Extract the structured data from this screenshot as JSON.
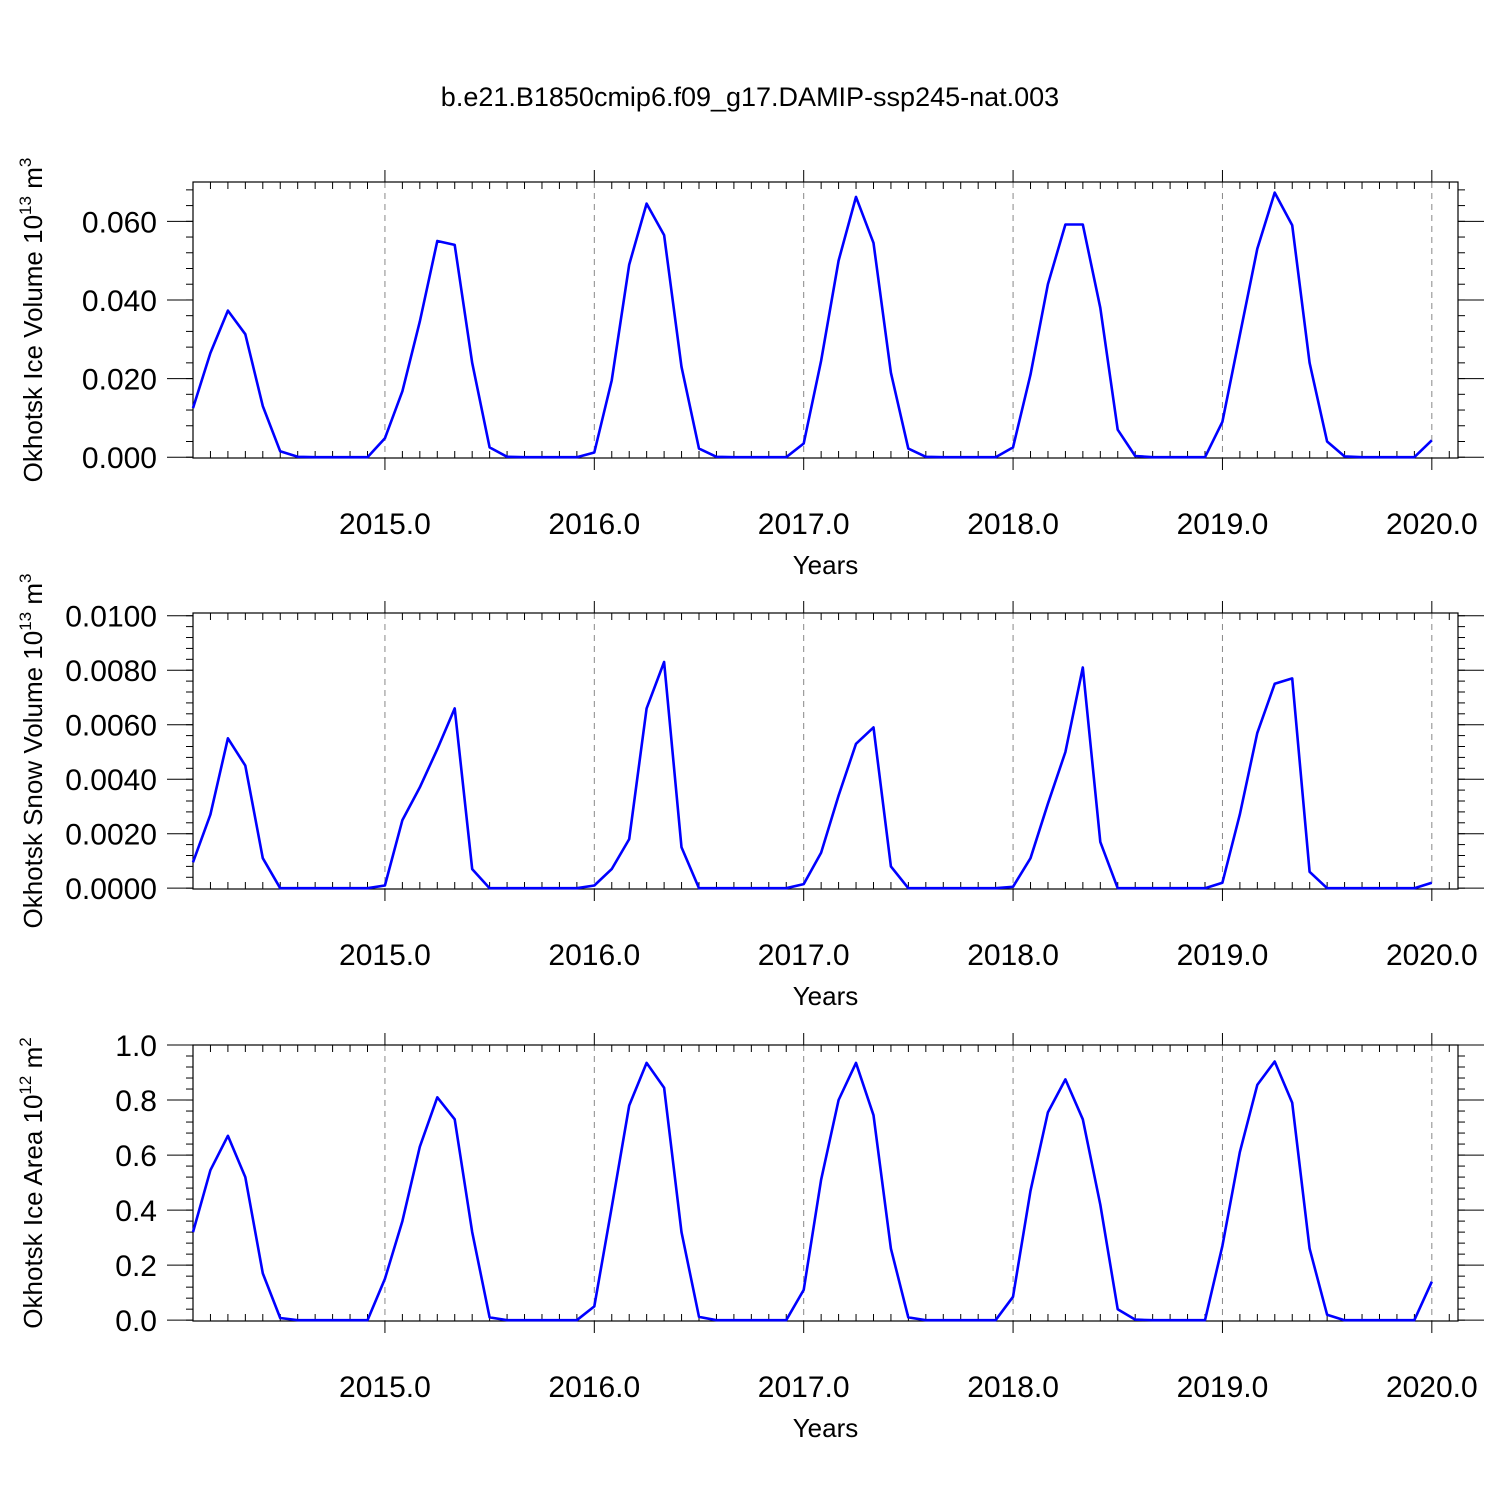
{
  "title": "b.e21.B1850cmip6.f09_g17.DAMIP-ssp245-nat.003",
  "line_color": "#0000ff",
  "chart_data": [
    {
      "type": "line",
      "ylabel": "Okhotsk Ice Volume 10",
      "ylabel_sup": "13",
      "ylabel_unit": " m",
      "ylabel_unit_sup": "3",
      "xlabel": "Years",
      "xlim": [
        2014.0833,
        2020.125
      ],
      "ylim": [
        -0.0002,
        0.07
      ],
      "yticks": [
        0.0,
        0.02,
        0.04,
        0.06
      ],
      "ytick_labels": [
        "0.000",
        "0.020",
        "0.040",
        "0.060"
      ],
      "xticks": [
        2015,
        2016,
        2017,
        2018,
        2019,
        2020
      ],
      "xtick_labels": [
        "2015.0",
        "2016.0",
        "2017.0",
        "2018.0",
        "2019.0",
        "2020.0"
      ],
      "grid": "vertical dashed at each year",
      "series": [
        {
          "x_start": 2014.0833,
          "x_step": 0.08333,
          "values": [
            0.0125,
            0.0265,
            0.0373,
            0.0313,
            0.013,
            0.0015,
            0.0001,
            0.0,
            0.0,
            0.0,
            0.0,
            0.0048,
            0.0168,
            0.0345,
            0.055,
            0.054,
            0.024,
            0.0025,
            0.0001,
            0.0,
            0.0,
            0.0,
            0.0,
            0.0012,
            0.0195,
            0.049,
            0.0645,
            0.0565,
            0.023,
            0.0022,
            0.0001,
            0.0,
            0.0,
            0.0,
            0.0,
            0.0035,
            0.0245,
            0.05,
            0.0662,
            0.0545,
            0.0215,
            0.0022,
            0.0001,
            0.0,
            0.0,
            0.0,
            0.0,
            0.0025,
            0.021,
            0.044,
            0.0592,
            0.0592,
            0.038,
            0.007,
            0.0003,
            0.0,
            0.0,
            0.0,
            0.0,
            0.009,
            0.031,
            0.053,
            0.0673,
            0.059,
            0.024,
            0.004,
            0.0002,
            0.0,
            0.0,
            0.0,
            0.0,
            0.0043
          ]
        }
      ]
    },
    {
      "type": "line",
      "ylabel": "Okhotsk Snow Volume 10",
      "ylabel_sup": "13",
      "ylabel_unit": " m",
      "ylabel_unit_sup": "3",
      "xlabel": "Years",
      "xlim": [
        2014.0833,
        2020.125
      ],
      "ylim": [
        -3e-05,
        0.0101
      ],
      "yticks": [
        0.0,
        0.002,
        0.004,
        0.006,
        0.008,
        0.01
      ],
      "ytick_labels": [
        "0.0000",
        "0.0020",
        "0.0040",
        "0.0060",
        "0.0080",
        "0.0100"
      ],
      "xticks": [
        2015,
        2016,
        2017,
        2018,
        2019,
        2020
      ],
      "xtick_labels": [
        "2015.0",
        "2016.0",
        "2017.0",
        "2018.0",
        "2019.0",
        "2020.0"
      ],
      "grid": "vertical dashed at each year",
      "series": [
        {
          "x_start": 2014.0833,
          "x_step": 0.08333,
          "values": [
            0.00095,
            0.0027,
            0.0055,
            0.0045,
            0.0011,
            0.0,
            0.0,
            0.0,
            0.0,
            0.0,
            0.0,
            0.0001,
            0.0025,
            0.0037,
            0.0051,
            0.0066,
            0.0007,
            0.0,
            0.0,
            0.0,
            0.0,
            0.0,
            0.0,
            0.0001,
            0.0007,
            0.0018,
            0.0066,
            0.0083,
            0.0015,
            0.0,
            0.0,
            0.0,
            0.0,
            0.0,
            0.0,
            0.00015,
            0.0013,
            0.0034,
            0.0053,
            0.0059,
            0.0008,
            0.0,
            0.0,
            0.0,
            0.0,
            0.0,
            0.0,
            5e-05,
            0.0011,
            0.0031,
            0.005,
            0.0081,
            0.0017,
            0.0,
            0.0,
            0.0,
            0.0,
            0.0,
            0.0,
            0.0002,
            0.0027,
            0.0057,
            0.0075,
            0.0077,
            0.0006,
            0.0,
            0.0,
            0.0,
            0.0,
            0.0,
            0.0,
            0.0002
          ]
        }
      ]
    },
    {
      "type": "line",
      "ylabel": "Okhotsk Ice Area 10",
      "ylabel_sup": "12",
      "ylabel_unit": " m",
      "ylabel_unit_sup": "2",
      "xlabel": "Years",
      "xlim": [
        2014.0833,
        2020.125
      ],
      "ylim": [
        -0.003,
        1.0
      ],
      "yticks": [
        0.0,
        0.2,
        0.4,
        0.6,
        0.8,
        1.0
      ],
      "ytick_labels": [
        "0.0",
        "0.2",
        "0.4",
        "0.6",
        "0.8",
        "1.0"
      ],
      "xticks": [
        2015,
        2016,
        2017,
        2018,
        2019,
        2020
      ],
      "xtick_labels": [
        "2015.0",
        "2016.0",
        "2017.0",
        "2018.0",
        "2019.0",
        "2020.0"
      ],
      "grid": "vertical dashed at each year",
      "series": [
        {
          "x_start": 2014.0833,
          "x_step": 0.08333,
          "values": [
            0.32,
            0.545,
            0.67,
            0.52,
            0.17,
            0.008,
            0.0,
            0.0,
            0.0,
            0.0,
            0.0,
            0.15,
            0.36,
            0.63,
            0.81,
            0.73,
            0.32,
            0.01,
            0.0,
            0.0,
            0.0,
            0.0,
            0.0,
            0.05,
            0.41,
            0.78,
            0.935,
            0.845,
            0.32,
            0.012,
            0.0,
            0.0,
            0.0,
            0.0,
            0.0,
            0.11,
            0.51,
            0.8,
            0.935,
            0.745,
            0.26,
            0.01,
            0.0,
            0.0,
            0.0,
            0.0,
            0.0,
            0.085,
            0.47,
            0.755,
            0.875,
            0.73,
            0.42,
            0.04,
            0.002,
            0.0,
            0.0,
            0.0,
            0.0,
            0.27,
            0.61,
            0.855,
            0.94,
            0.79,
            0.26,
            0.02,
            0.0,
            0.0,
            0.0,
            0.0,
            0.0,
            0.14
          ]
        }
      ]
    }
  ]
}
